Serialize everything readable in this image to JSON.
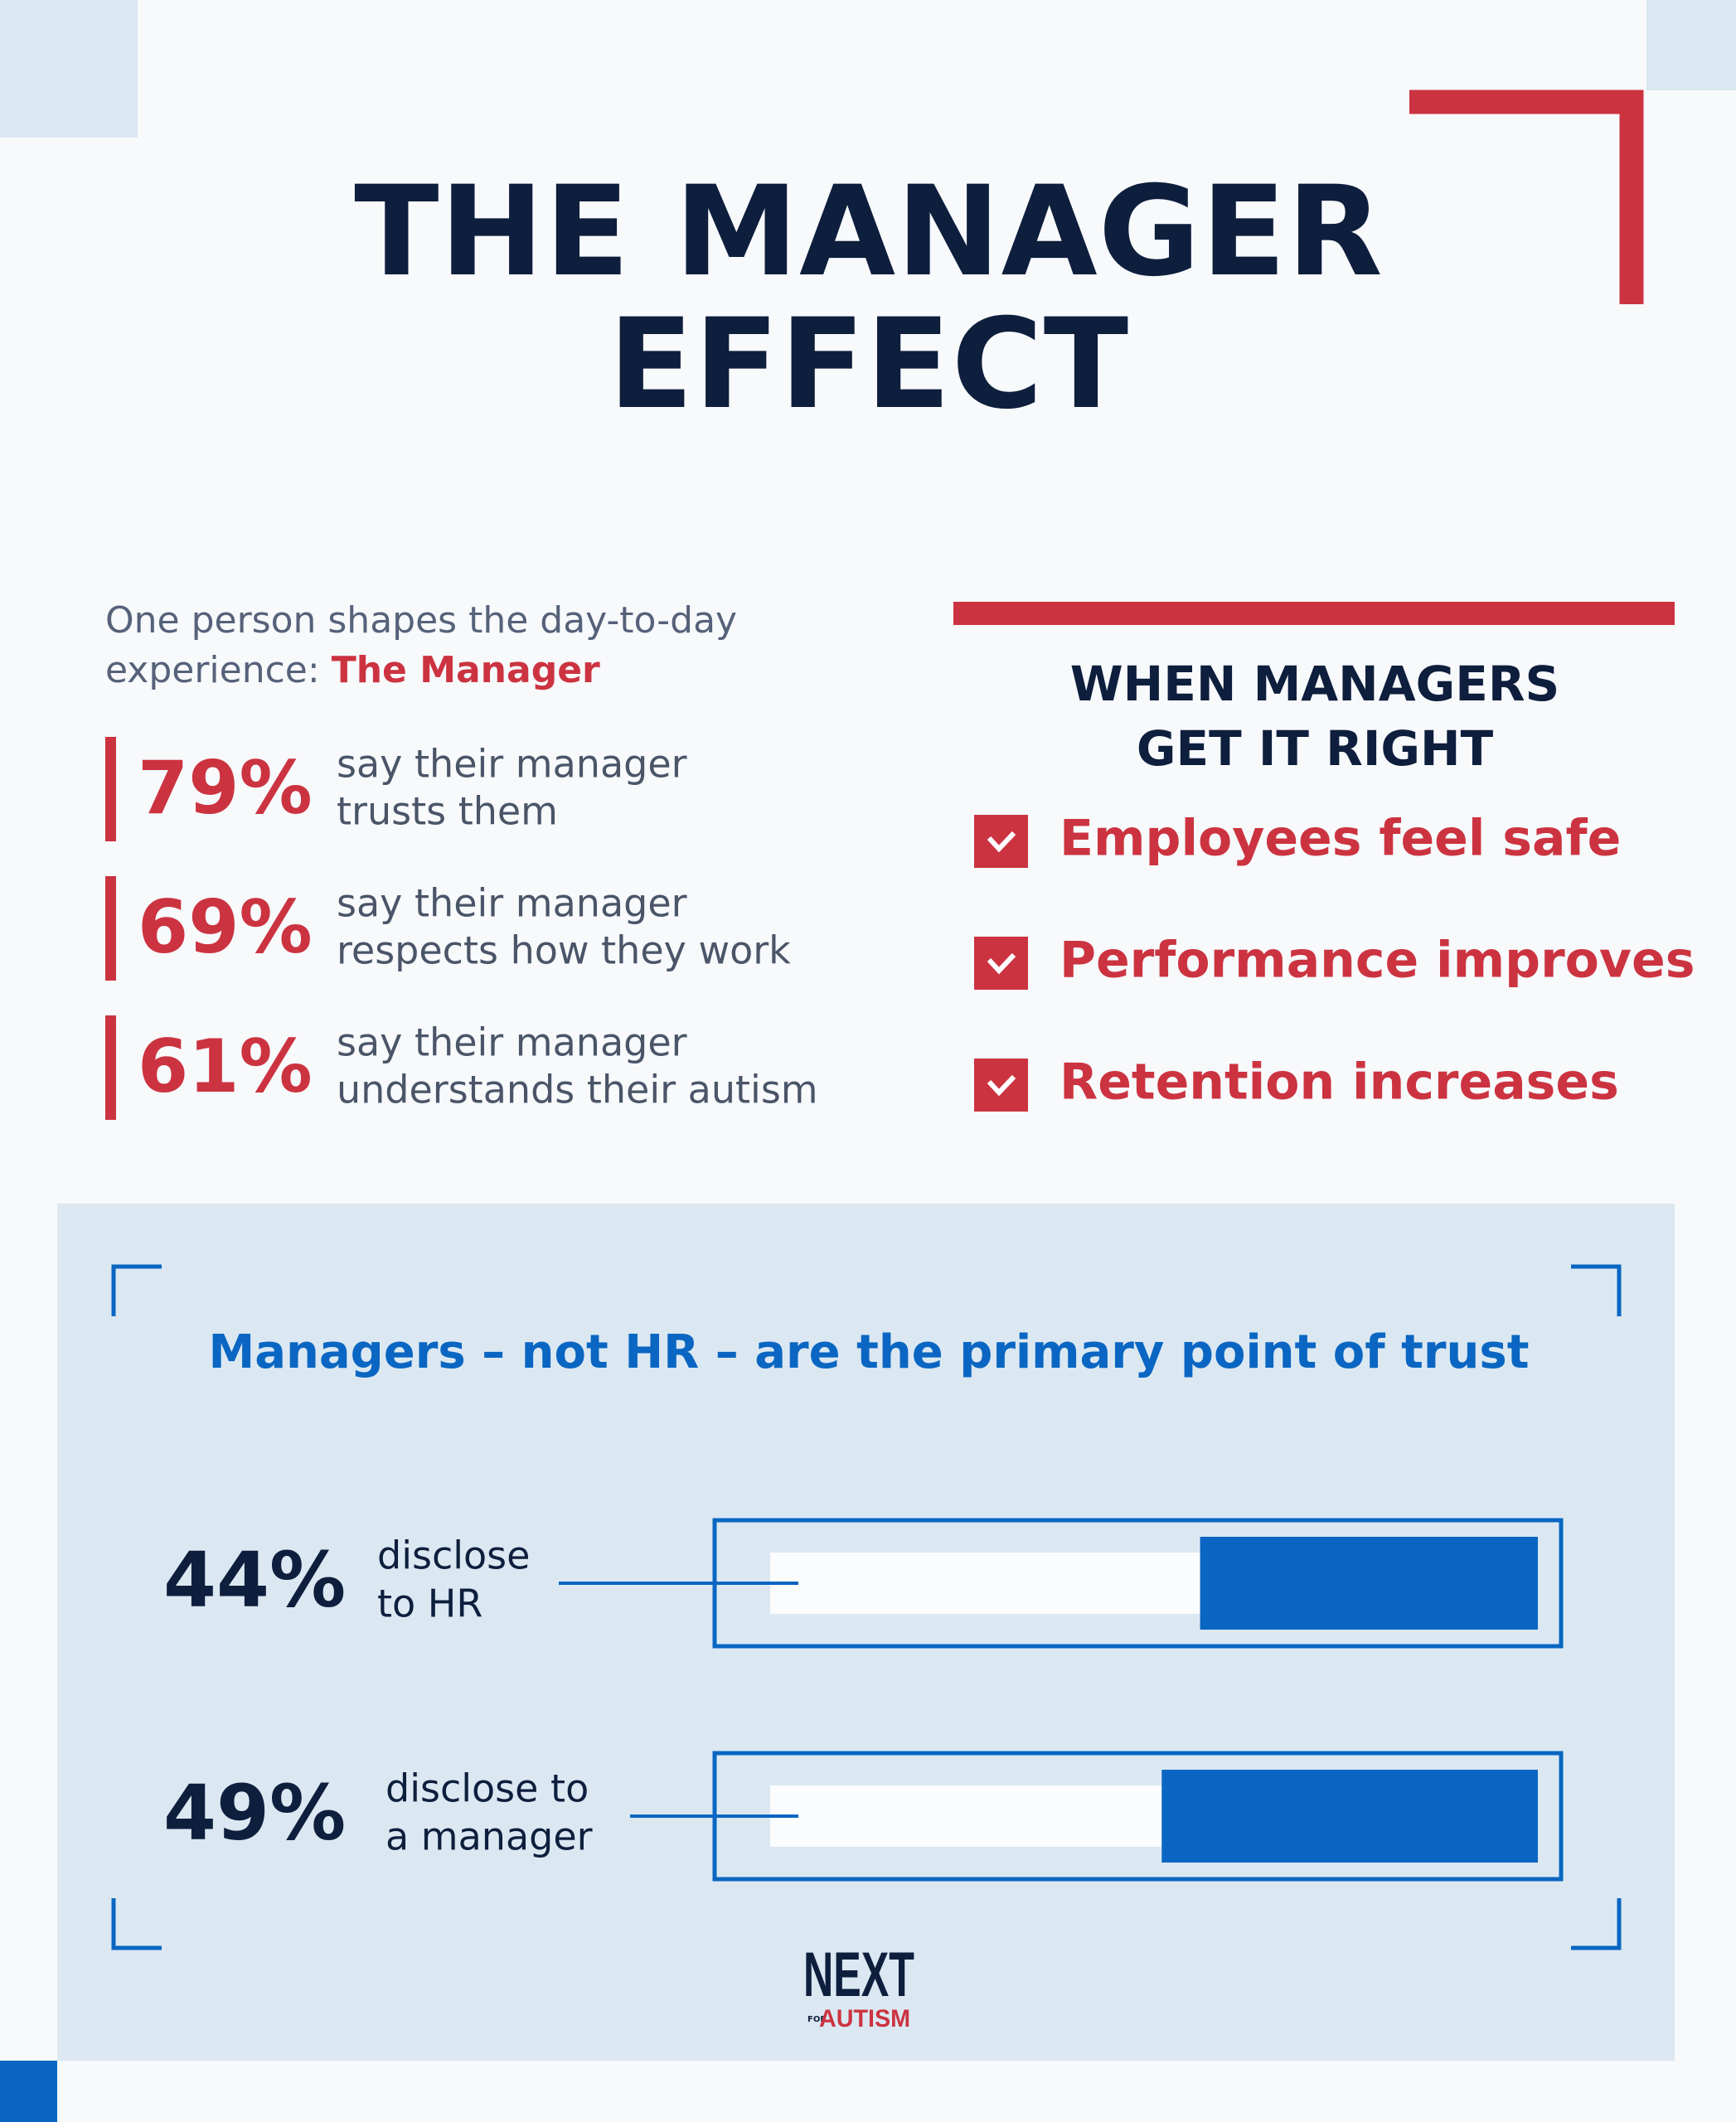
{
  "header": {
    "title_lines": [
      "THE MANAGER",
      "EFFECT"
    ]
  },
  "intro": {
    "lines": [
      "One person shapes the day-to-day",
      "experience:"
    ],
    "highlight": "The Manager"
  },
  "stats": [
    {
      "percent": "79%",
      "lines": [
        "say their manager",
        "trusts them"
      ]
    },
    {
      "percent": "69%",
      "lines": [
        "say their manager",
        "respects how they work"
      ]
    },
    {
      "percent": "61%",
      "lines": [
        "say their manager",
        "understands their autism"
      ]
    }
  ],
  "right_panel": {
    "heading_lines": [
      "WHEN MANAGERS",
      "GET IT RIGHT"
    ],
    "checklist": [
      "Employees feel safe",
      "Performance improves",
      "Retention increases"
    ]
  },
  "chart_data": {
    "type": "bar",
    "orientation": "horizontal",
    "title": "Managers – not HR – are the primary point of trust",
    "categories": [
      [
        "disclose",
        "to HR"
      ],
      [
        "disclose to",
        "a manager"
      ]
    ],
    "values": [
      44,
      49
    ],
    "value_labels": [
      "44%",
      "49%"
    ],
    "xlim": [
      0,
      100
    ],
    "color": "#0a66c2"
  },
  "logo": {
    "name": "NEXT",
    "for": "FOR",
    "sub": "AUTISM"
  }
}
